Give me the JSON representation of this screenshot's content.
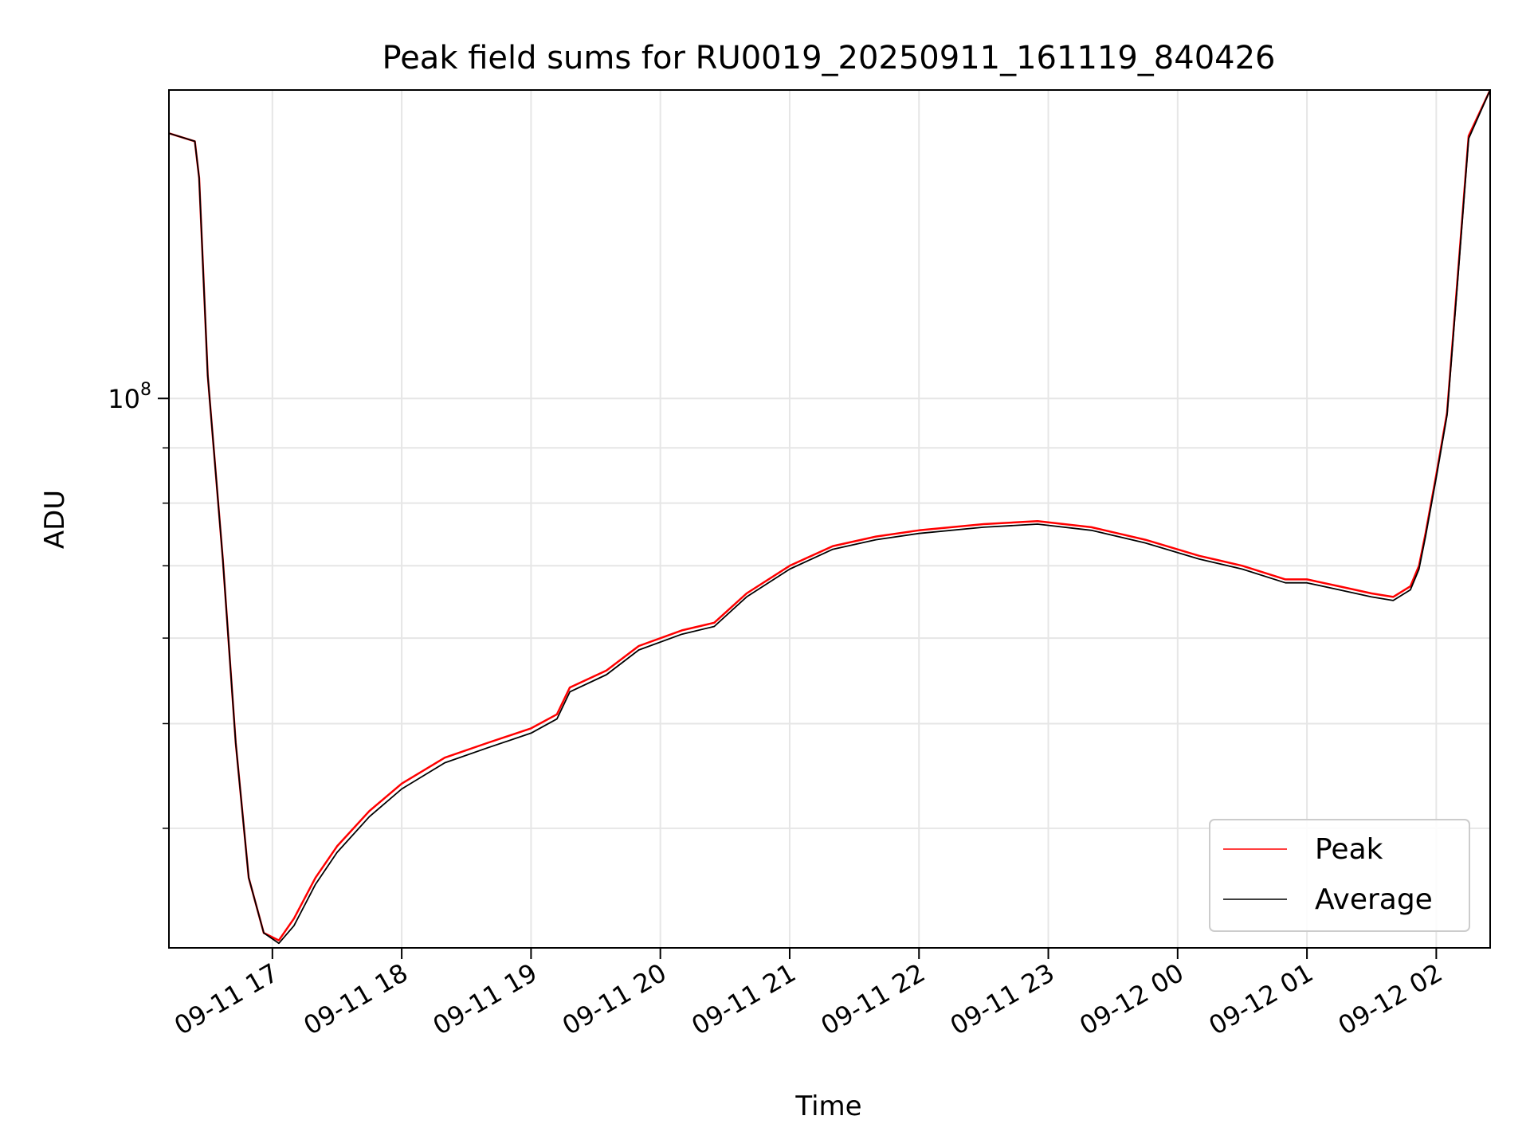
{
  "chart_data": {
    "type": "line",
    "title": "Peak field sums for RU0019_20250911_161119_840426",
    "xlabel": "Time",
    "ylabel": "ADU",
    "yscale": "log",
    "ylim": [
      31000000,
      193000000
    ],
    "xlim": [
      "2025-09-11 16:12",
      "2025-09-12 02:25"
    ],
    "grid": true,
    "legend_position": "lower-right",
    "x_tick_labels": [
      "09-11 17",
      "09-11 18",
      "09-11 19",
      "09-11 20",
      "09-11 21",
      "09-11 22",
      "09-11 23",
      "09-12 00",
      "09-12 01",
      "09-12 02"
    ],
    "y_tick_label": {
      "base": "10",
      "exponent": "8"
    },
    "x": [
      "2025-09-11 16:12",
      "2025-09-11 16:24",
      "2025-09-11 16:26",
      "2025-09-11 16:30",
      "2025-09-11 16:37",
      "2025-09-11 16:43",
      "2025-09-11 16:49",
      "2025-09-11 16:56",
      "2025-09-11 17:03",
      "2025-09-11 17:10",
      "2025-09-11 17:20",
      "2025-09-11 17:30",
      "2025-09-11 17:45",
      "2025-09-11 18:00",
      "2025-09-11 18:20",
      "2025-09-11 18:40",
      "2025-09-11 19:00",
      "2025-09-11 19:12",
      "2025-09-11 19:18",
      "2025-09-11 19:35",
      "2025-09-11 19:50",
      "2025-09-11 20:10",
      "2025-09-11 20:25",
      "2025-09-11 20:40",
      "2025-09-11 21:00",
      "2025-09-11 21:20",
      "2025-09-11 21:40",
      "2025-09-11 22:00",
      "2025-09-11 22:30",
      "2025-09-11 22:55",
      "2025-09-11 23:20",
      "2025-09-11 23:45",
      "2025-09-12 00:10",
      "2025-09-12 00:30",
      "2025-09-12 00:50",
      "2025-09-12 01:00",
      "2025-09-12 01:15",
      "2025-09-12 01:30",
      "2025-09-12 01:40",
      "2025-09-12 01:48",
      "2025-09-12 01:52",
      "2025-09-12 01:55",
      "2025-09-12 02:00",
      "2025-09-12 02:05",
      "2025-09-12 02:10",
      "2025-09-12 02:15",
      "2025-09-12 02:25"
    ],
    "series": [
      {
        "name": "Peak",
        "color": "#ff0000",
        "values": [
          176000000,
          173000000,
          160000000,
          105000000,
          71000000,
          48000000,
          36000000,
          32000000,
          31500000,
          33000000,
          36000000,
          38500000,
          41500000,
          44000000,
          46500000,
          48000000,
          49500000,
          51000000,
          54000000,
          56000000,
          59000000,
          61000000,
          62000000,
          66000000,
          70000000,
          73000000,
          74500000,
          75500000,
          76500000,
          77000000,
          76000000,
          74000000,
          71500000,
          70000000,
          68000000,
          68000000,
          67000000,
          66000000,
          65500000,
          67000000,
          70000000,
          75000000,
          85000000,
          97000000,
          130000000,
          175000000,
          193000000
        ]
      },
      {
        "name": "Average",
        "color": "#000000",
        "values": [
          176000000,
          173000000,
          160000000,
          105000000,
          71000000,
          48000000,
          36000000,
          32000000,
          31300000,
          32500000,
          35500000,
          38000000,
          41000000,
          43500000,
          46000000,
          47500000,
          49000000,
          50500000,
          53500000,
          55500000,
          58500000,
          60500000,
          61500000,
          65500000,
          69500000,
          72500000,
          74000000,
          75000000,
          76000000,
          76500000,
          75500000,
          73500000,
          71000000,
          69500000,
          67500000,
          67500000,
          66500000,
          65500000,
          65000000,
          66500000,
          69500000,
          74500000,
          84500000,
          96500000,
          129000000,
          174000000,
          193000000
        ]
      }
    ]
  }
}
